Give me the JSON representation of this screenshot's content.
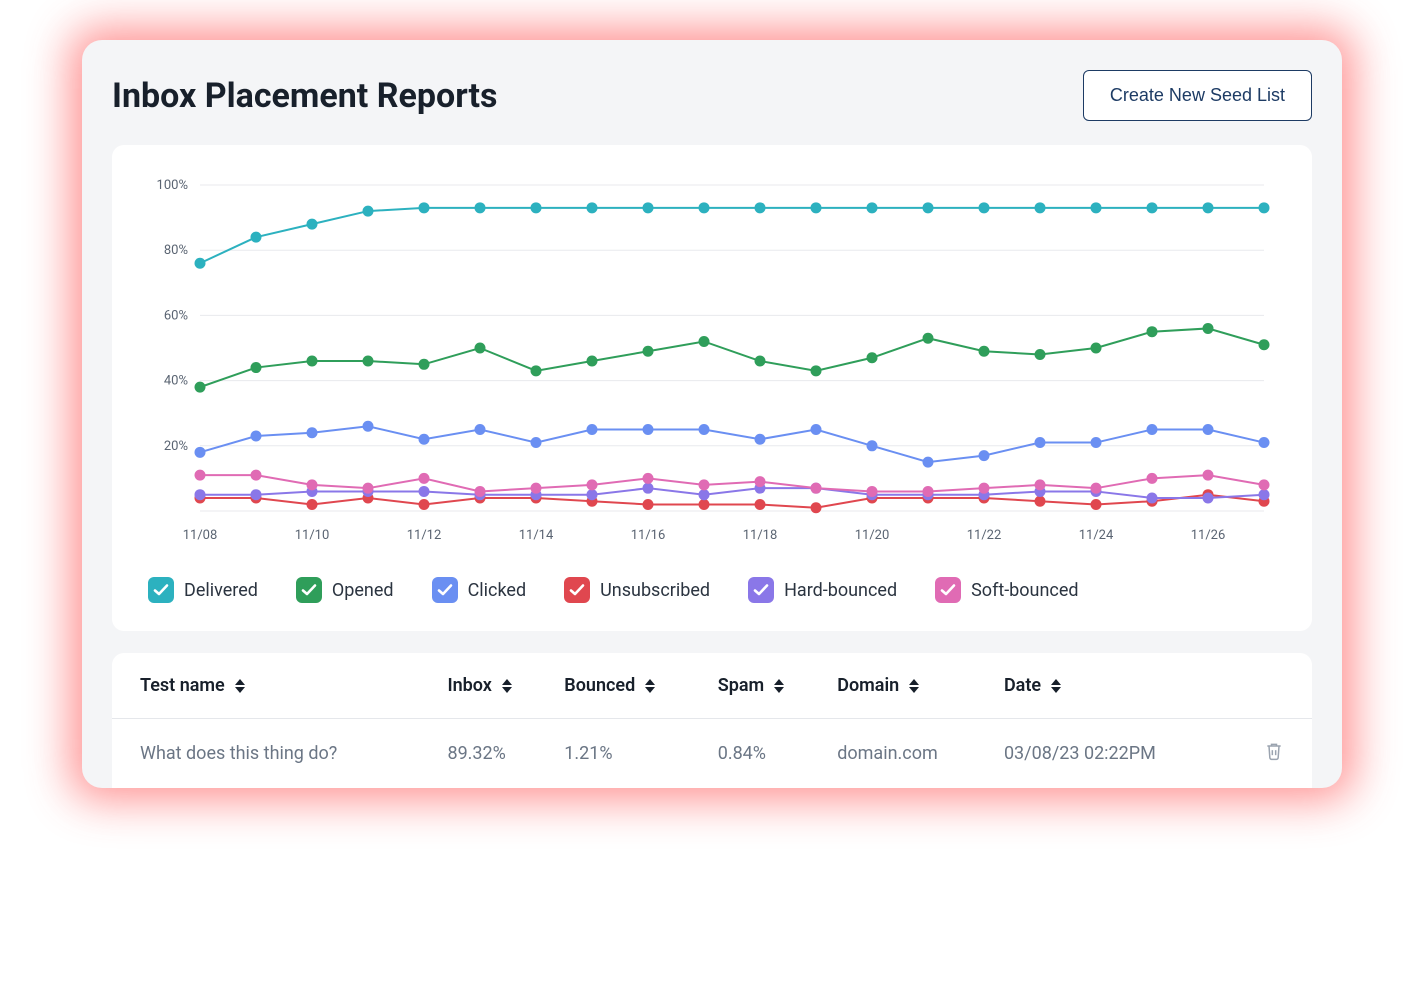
{
  "header": {
    "title": "Inbox Placement Reports",
    "seed_button_label": "Create New Seed List"
  },
  "chart": {
    "type": "line",
    "background_color": "#ffffff",
    "grid_color": "#e8eaed",
    "axis_font_size": 13,
    "axis_text_color": "#5a6472",
    "ylim": [
      0,
      100
    ],
    "yticks": [
      0,
      20,
      40,
      60,
      80,
      100
    ],
    "ytick_labels": [
      "",
      "20%",
      "40%",
      "60%",
      "80%",
      "100%"
    ],
    "x_labels": [
      "11/08",
      "",
      "11/10",
      "",
      "11/12",
      "",
      "11/14",
      "",
      "11/16",
      "",
      "11/18",
      "",
      "11/20",
      "",
      "11/22",
      "",
      "11/24",
      "",
      "11/26",
      ""
    ],
    "x_label_step": 2,
    "marker_radius": 5.5,
    "line_width": 2,
    "series": [
      {
        "key": "delivered",
        "label": "Delivered",
        "color": "#2cb1bf",
        "values": [
          76,
          84,
          88,
          92,
          93,
          93,
          93,
          93,
          93,
          93,
          93,
          93,
          93,
          93,
          93,
          93,
          93,
          93,
          93,
          93
        ]
      },
      {
        "key": "opened",
        "label": "Opened",
        "color": "#2f9e5a",
        "values": [
          38,
          44,
          46,
          46,
          45,
          50,
          43,
          46,
          49,
          52,
          46,
          43,
          47,
          53,
          49,
          48,
          50,
          55,
          56,
          51
        ]
      },
      {
        "key": "clicked",
        "label": "Clicked",
        "color": "#6a8ff2",
        "values": [
          18,
          23,
          24,
          26,
          22,
          25,
          21,
          25,
          25,
          25,
          22,
          25,
          20,
          15,
          17,
          21,
          21,
          25,
          25,
          21
        ]
      },
      {
        "key": "unsubscribed",
        "label": "Unsubscribed",
        "color": "#e0474f",
        "values": [
          4,
          4,
          2,
          4,
          2,
          4,
          4,
          3,
          2,
          2,
          2,
          1,
          4,
          4,
          4,
          3,
          2,
          3,
          5,
          3
        ]
      },
      {
        "key": "hard_bounced",
        "label": "Hard-bounced",
        "color": "#8a77e8",
        "values": [
          5,
          5,
          6,
          6,
          6,
          5,
          5,
          5,
          7,
          5,
          7,
          7,
          5,
          5,
          5,
          6,
          6,
          4,
          4,
          5
        ]
      },
      {
        "key": "soft_bounced",
        "label": "Soft-bounced",
        "color": "#e06bb4",
        "values": [
          11,
          11,
          8,
          7,
          10,
          6,
          7,
          8,
          10,
          8,
          9,
          7,
          6,
          6,
          7,
          8,
          7,
          10,
          11,
          8
        ]
      }
    ],
    "last_two_series_offset_each_other": true
  },
  "legend": {
    "items": [
      {
        "key": "delivered",
        "label": "Delivered",
        "color": "#2cb1bf"
      },
      {
        "key": "opened",
        "label": "Opened",
        "color": "#2f9e5a"
      },
      {
        "key": "clicked",
        "label": "Clicked",
        "color": "#6a8ff2"
      },
      {
        "key": "unsubscribed",
        "label": "Unsubscribed",
        "color": "#e0474f"
      },
      {
        "key": "hard_bounced",
        "label": "Hard-bounced",
        "color": "#8a77e8"
      },
      {
        "key": "soft_bounced",
        "label": "Soft-bounced",
        "color": "#e06bb4"
      }
    ]
  },
  "table": {
    "columns": [
      {
        "key": "test_name",
        "label": "Test name"
      },
      {
        "key": "inbox",
        "label": "Inbox"
      },
      {
        "key": "bounced",
        "label": "Bounced"
      },
      {
        "key": "spam",
        "label": "Spam"
      },
      {
        "key": "domain",
        "label": "Domain"
      },
      {
        "key": "date",
        "label": "Date"
      }
    ],
    "rows": [
      {
        "test_name": "What does this thing do?",
        "inbox": "89.32%",
        "bounced": "1.21%",
        "spam": "0.84%",
        "domain": "domain.com",
        "date": "03/08/23 02:22PM"
      }
    ]
  }
}
